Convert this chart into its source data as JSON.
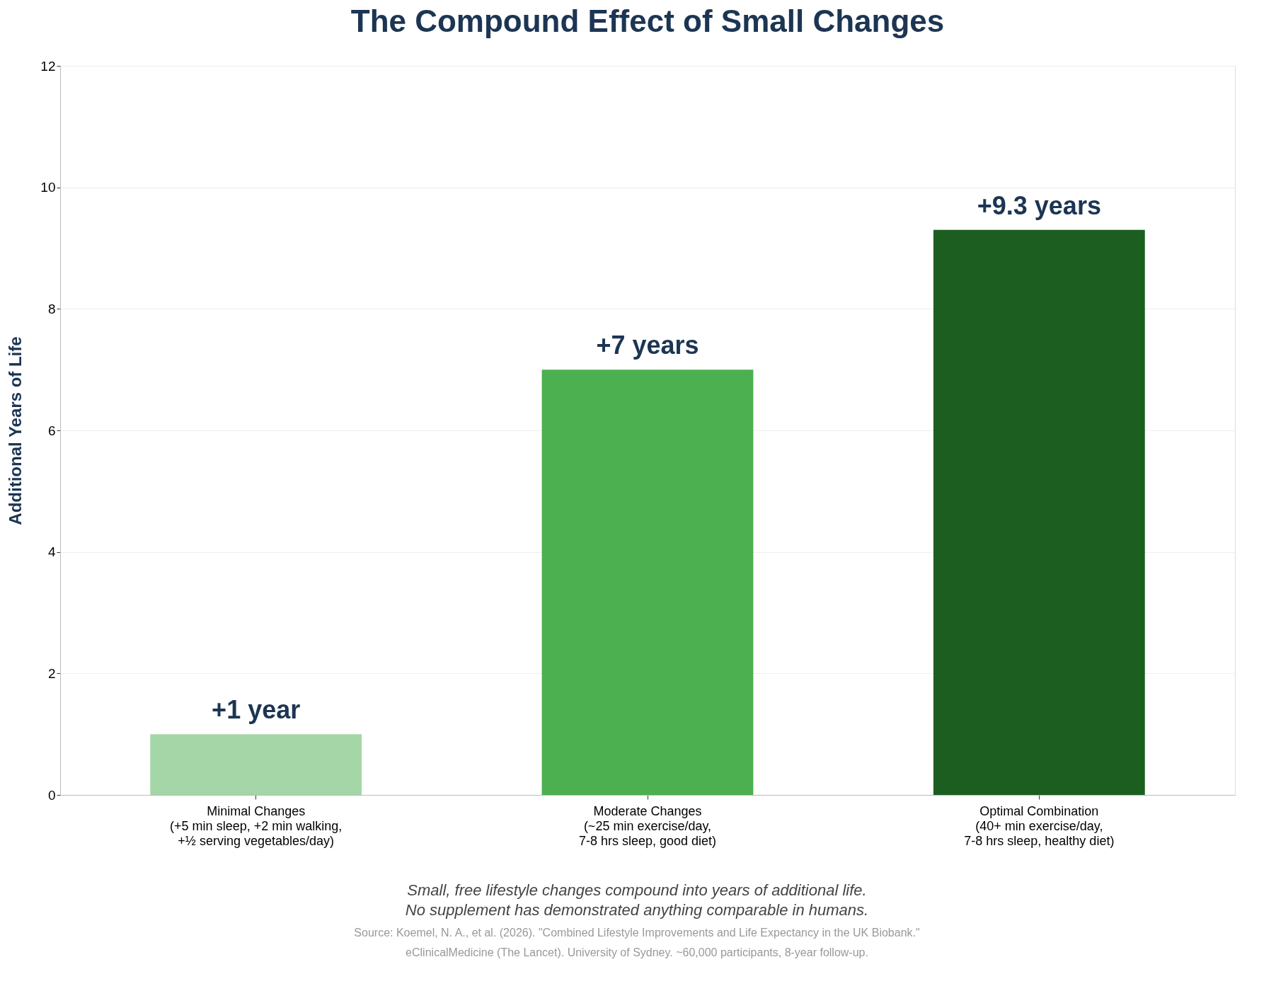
{
  "chart_data": {
    "type": "bar",
    "title": "The Compound Effect of Small Changes",
    "ylabel": "Additional Years of Life",
    "categories": [
      "Minimal Changes\n(+5 min sleep, +2 min walking,\n+½ serving vegetables/day)",
      "Moderate Changes\n(~25 min exercise/day,\n7-8 hrs sleep, good diet)",
      "Optimal Combination\n(40+ min exercise/day,\n7-8 hrs sleep, healthy diet)"
    ],
    "values": [
      1,
      7,
      9.3
    ],
    "colors": [
      "#a5d6a7",
      "#4caf50",
      "#1b5e20"
    ],
    "value_labels": [
      "+1 year",
      "+7 years",
      "+9.3 years"
    ],
    "ylim": [
      0,
      12
    ],
    "yticks": [
      0,
      2,
      4,
      6,
      8,
      10,
      12
    ],
    "grid": "y",
    "annotations": [
      "Small, free lifestyle changes compound into years of additional life.\nNo supplement has demonstrated anything comparable in humans.",
      "Source: Koemel, N. A., et al. (2026). \"Combined Lifestyle Improvements and Life Expectancy in the UK Biobank.\"\neClinicalMedicine (The Lancet). University of Sydney. ~60,000 participants, 8-year follow-up."
    ]
  }
}
